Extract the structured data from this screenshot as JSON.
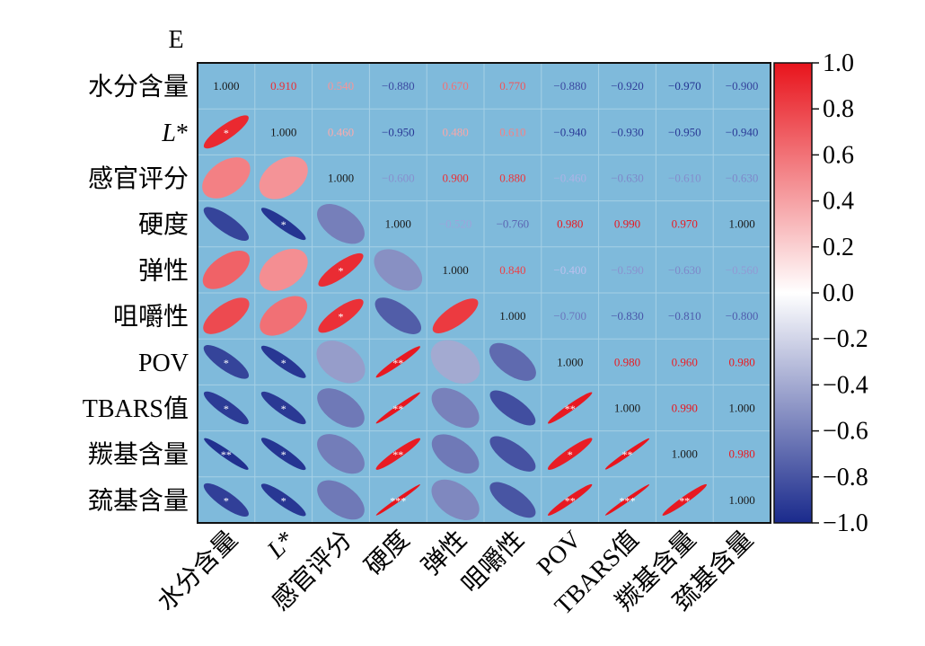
{
  "panel_label": "E",
  "chart_data": {
    "type": "heatmap",
    "variables": [
      "水分含量",
      "L*",
      "感官评分",
      "硬度",
      "弹性",
      "咀嚼性",
      "POV",
      "TBARS值",
      "羰基含量",
      "巯基含量"
    ],
    "correlation_matrix": [
      [
        1.0,
        0.91,
        0.54,
        -0.88,
        0.67,
        0.77,
        -0.88,
        -0.92,
        -0.97,
        -0.9
      ],
      [
        0.91,
        1.0,
        0.46,
        -0.95,
        0.48,
        0.61,
        -0.94,
        -0.93,
        -0.95,
        -0.94
      ],
      [
        0.54,
        0.46,
        1.0,
        -0.6,
        0.9,
        0.88,
        -0.46,
        -0.63,
        -0.61,
        -0.63
      ],
      [
        -0.88,
        -0.95,
        -0.6,
        1.0,
        -0.52,
        -0.76,
        0.98,
        0.99,
        0.97,
        1.0
      ],
      [
        0.67,
        0.48,
        0.9,
        -0.52,
        1.0,
        0.84,
        -0.4,
        -0.59,
        -0.63,
        -0.56
      ],
      [
        0.77,
        0.61,
        0.88,
        -0.76,
        0.84,
        1.0,
        -0.7,
        -0.83,
        -0.81,
        -0.8
      ],
      [
        -0.88,
        -0.94,
        -0.46,
        0.98,
        -0.4,
        -0.7,
        1.0,
        0.98,
        0.96,
        0.98
      ],
      [
        -0.92,
        -0.93,
        -0.63,
        0.99,
        -0.59,
        -0.83,
        0.98,
        1.0,
        0.99,
        1.0
      ],
      [
        -0.97,
        -0.95,
        -0.61,
        0.97,
        -0.63,
        -0.81,
        0.96,
        0.99,
        1.0,
        0.98
      ],
      [
        -0.9,
        -0.94,
        -0.63,
        1.0,
        -0.56,
        -0.8,
        0.98,
        1.0,
        0.98,
        1.0
      ]
    ],
    "upper_triangle_labels": [
      [
        "1.000",
        "0.910",
        "0.540",
        "−0.880",
        "0.670",
        "0.770",
        "−0.880",
        "−0.920",
        "−0.970",
        "−0.900"
      ],
      [
        "",
        "1.000",
        "0.460",
        "−0.950",
        "0.480",
        "0.610",
        "−0.940",
        "−0.930",
        "−0.950",
        "−0.940"
      ],
      [
        "",
        "",
        "1.000",
        "−0.600",
        "0.900",
        "0.880",
        "−0.460",
        "−0.630",
        "−0.610",
        "−0.630"
      ],
      [
        "",
        "",
        "",
        "1.000",
        "−0.520",
        "−0.760",
        "0.980",
        "0.990",
        "0.970",
        "1.000"
      ],
      [
        "",
        "",
        "",
        "",
        "1.000",
        "0.840",
        "−0.400",
        "−0.590",
        "−0.630",
        "−0.560"
      ],
      [
        "",
        "",
        "",
        "",
        "",
        "1.000",
        "−0.700",
        "−0.830",
        "−0.810",
        "−0.800"
      ],
      [
        "",
        "",
        "",
        "",
        "",
        "",
        "1.000",
        "0.980",
        "0.960",
        "0.980"
      ],
      [
        "",
        "",
        "",
        "",
        "",
        "",
        "",
        "1.000",
        "0.990",
        "1.000"
      ],
      [
        "",
        "",
        "",
        "",
        "",
        "",
        "",
        "",
        "1.000",
        "0.980"
      ],
      [
        "",
        "",
        "",
        "",
        "",
        "",
        "",
        "",
        "",
        "1.000"
      ]
    ],
    "significance": [
      [
        "",
        "",
        "",
        "",
        "",
        "",
        "",
        "",
        "",
        ""
      ],
      [
        "*",
        "",
        "",
        "",
        "",
        "",
        "",
        "",
        "",
        ""
      ],
      [
        "",
        "",
        "",
        "",
        "",
        "",
        "",
        "",
        "",
        ""
      ],
      [
        "",
        "*",
        "",
        "",
        "",
        "",
        "",
        "",
        "",
        ""
      ],
      [
        "",
        "",
        "*",
        "",
        "",
        "",
        "",
        "",
        "",
        ""
      ],
      [
        "",
        "",
        "*",
        "",
        "",
        "",
        "",
        "",
        "",
        ""
      ],
      [
        "*",
        "*",
        "",
        "**",
        "",
        "",
        "",
        "",
        "",
        ""
      ],
      [
        "*",
        "*",
        "",
        "**",
        "",
        "",
        "**",
        "",
        "",
        ""
      ],
      [
        "**",
        "*",
        "",
        "**",
        "",
        "",
        "*",
        "**",
        "",
        ""
      ],
      [
        "*",
        "*",
        "",
        "***",
        "",
        "",
        "**",
        "***",
        "**",
        ""
      ]
    ],
    "colorbar": {
      "range": [
        -1.0,
        1.0
      ],
      "ticks": [
        1.0,
        0.8,
        0.6,
        0.4,
        0.2,
        0.0,
        -0.2,
        -0.4,
        -0.6,
        -0.8,
        -1.0
      ],
      "tick_labels": [
        "1.0",
        "0.8",
        "0.6",
        "0.4",
        "0.2",
        "0.0",
        "−0.2",
        "−0.4",
        "−0.6",
        "−0.8",
        "−1.0"
      ]
    },
    "colors": {
      "positive": "#e8141c",
      "negative": "#1a2a8c",
      "neutral": "#ffffff",
      "panel_background": "#7fbadb",
      "grid_line": "#a6d0e6",
      "border": "#111111"
    },
    "legend": "colorbar right"
  }
}
